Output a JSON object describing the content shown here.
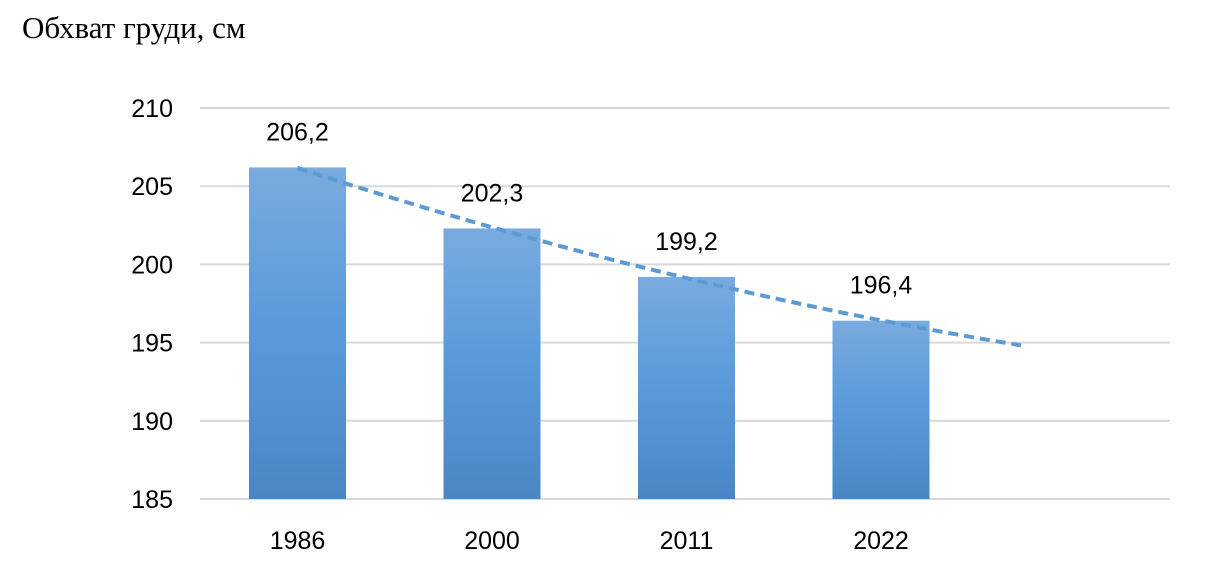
{
  "chart_data": {
    "type": "bar",
    "title": "Обхват груди, см",
    "xlabel": "",
    "ylabel": "",
    "categories": [
      "1986",
      "2000",
      "2011",
      "2022"
    ],
    "values": [
      206.2,
      202.3,
      199.2,
      196.4
    ],
    "value_labels": [
      "206,2",
      "202,3",
      "199,2",
      "196,4"
    ],
    "ylim": [
      185,
      210
    ],
    "yticks": [
      185,
      190,
      195,
      200,
      205,
      210
    ],
    "grid": true,
    "legend": "none",
    "trendline": {
      "style": "dashed",
      "type": "polynomial",
      "extends_past_last_category": true
    },
    "colors": {
      "bar_top": "#7aaade",
      "bar_mid": "#5b9bdc",
      "bar_bottom": "#4a86c4",
      "trendline": "#5b9bd5",
      "grid": "#d9d9d9"
    }
  }
}
